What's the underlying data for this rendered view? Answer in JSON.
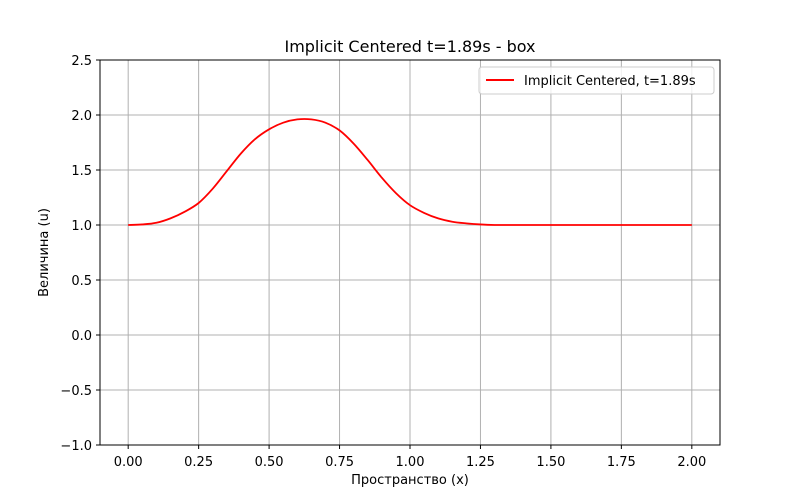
{
  "chart_data": {
    "type": "line",
    "title": "Implicit Centered t=1.89s - box",
    "xlabel": "Пространство (x)",
    "ylabel": "Величина (u)",
    "xlim": [
      -0.1,
      2.1
    ],
    "ylim": [
      -1.0,
      2.5
    ],
    "xticks": [
      0.0,
      0.25,
      0.5,
      0.75,
      1.0,
      1.25,
      1.5,
      1.75,
      2.0
    ],
    "xtick_labels": [
      "0.00",
      "0.25",
      "0.50",
      "0.75",
      "1.00",
      "1.25",
      "1.50",
      "1.75",
      "2.00"
    ],
    "yticks": [
      -1.0,
      -0.5,
      0.0,
      0.5,
      1.0,
      1.5,
      2.0,
      2.5
    ],
    "ytick_labels": [
      "−1.0",
      "−0.5",
      "0.0",
      "0.5",
      "1.0",
      "1.5",
      "2.0",
      "2.5"
    ],
    "grid": true,
    "legend_position": "top-right",
    "series": [
      {
        "name": "Implicit Centered, t=1.89s",
        "color": "#ff0000",
        "x": [
          0.0,
          0.05,
          0.1,
          0.15,
          0.2,
          0.25,
          0.3,
          0.35,
          0.4,
          0.45,
          0.5,
          0.55,
          0.6,
          0.65,
          0.7,
          0.75,
          0.8,
          0.85,
          0.9,
          0.95,
          1.0,
          1.05,
          1.1,
          1.15,
          1.2,
          1.25,
          1.3,
          1.35,
          1.4,
          1.5,
          1.6,
          1.7,
          1.8,
          1.9,
          2.0
        ],
        "y": [
          1.0,
          1.005,
          1.02,
          1.06,
          1.12,
          1.2,
          1.33,
          1.49,
          1.65,
          1.78,
          1.87,
          1.93,
          1.96,
          1.96,
          1.93,
          1.86,
          1.74,
          1.59,
          1.43,
          1.29,
          1.18,
          1.11,
          1.06,
          1.03,
          1.015,
          1.005,
          1.0,
          1.0,
          1.0,
          1.0,
          1.0,
          1.0,
          1.0,
          1.0,
          1.0
        ]
      }
    ]
  }
}
